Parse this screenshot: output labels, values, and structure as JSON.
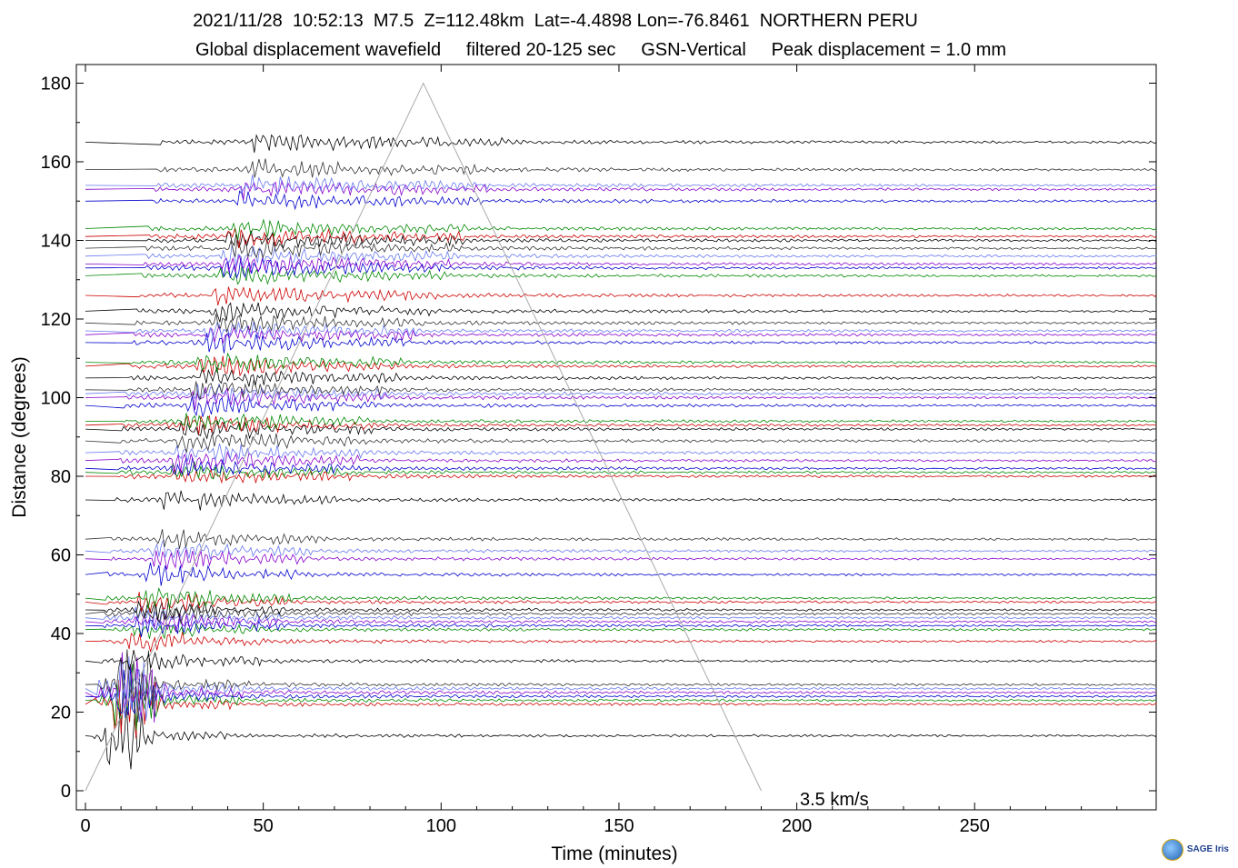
{
  "header": {
    "line1": "2021/11/28  10:52:13  M7.5  Z=112.48km  Lat=-4.4898 Lon=-76.8461  NORTHERN PERU",
    "line2": "Global displacement wavefield     filtered 20-125 sec     GSN-Vertical     Peak displacement = 1.0 mm"
  },
  "logo": {
    "text": "SAGE",
    "sub": "Iris",
    "icon": "globe-icon"
  },
  "chart_data": {
    "type": "line",
    "xlabel": "Time (minutes)",
    "ylabel": "Distance (degrees)",
    "xlim": [
      -3,
      300
    ],
    "ylim": [
      -5,
      185
    ],
    "xticks": [
      0,
      50,
      100,
      150,
      200,
      250
    ],
    "yticks": [
      0,
      20,
      40,
      60,
      80,
      100,
      120,
      140,
      160,
      180
    ],
    "grid": false,
    "reference_line": {
      "label": "3.5 km/s",
      "points": [
        [
          0,
          0
        ],
        [
          95,
          180
        ],
        [
          190,
          0
        ]
      ],
      "color": "#aaaaaa",
      "label_color": "#6f8080"
    },
    "trace_colors": [
      "#000000",
      "#cc0000",
      "#008800",
      "#0000cc",
      "#8800cc",
      "#6677ee",
      "#333333"
    ],
    "trace_distances": [
      14,
      22,
      23,
      24,
      25,
      26,
      27,
      33,
      38,
      41,
      42,
      43,
      44,
      45,
      46,
      48,
      49,
      55,
      59,
      61,
      64,
      74,
      80,
      81,
      82,
      84,
      86,
      89,
      92,
      93,
      94,
      98,
      100,
      101,
      102,
      105,
      108,
      109,
      114,
      116,
      117,
      119,
      122,
      126,
      131,
      133,
      134,
      136,
      138,
      140,
      141,
      143,
      150,
      153,
      154,
      158,
      165
    ]
  }
}
